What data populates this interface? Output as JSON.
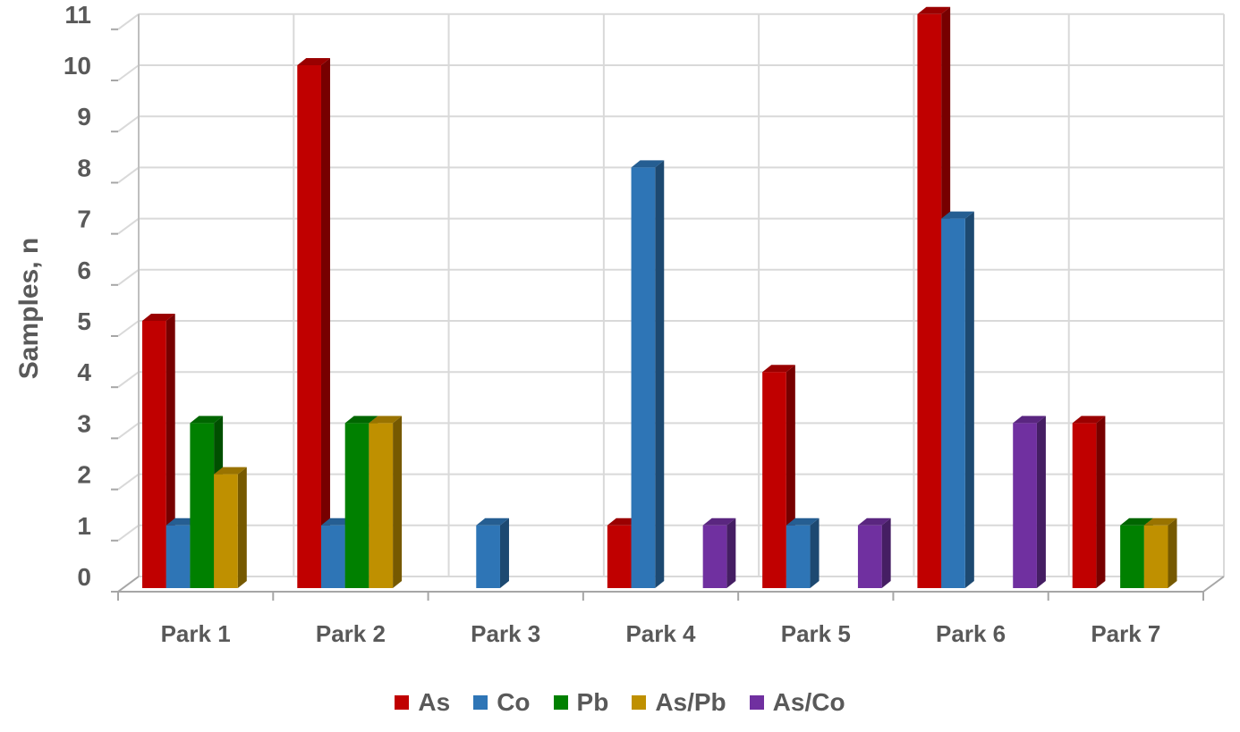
{
  "chart_data": {
    "type": "bar",
    "style": "3d-clustered-column",
    "ylabel": "Samples, n",
    "ylim": [
      0,
      11
    ],
    "yticks": [
      0,
      1,
      2,
      3,
      4,
      5,
      6,
      7,
      8,
      9,
      10,
      11
    ],
    "grid": true,
    "legend_position": "bottom",
    "categories": [
      "Park 1",
      "Park 2",
      "Park 3",
      "Park 4",
      "Park 5",
      "Park 6",
      "Park 7"
    ],
    "series": [
      {
        "name": "As",
        "color": "#C00000",
        "values": [
          5,
          10,
          0,
          1,
          4,
          11,
          3
        ]
      },
      {
        "name": "Co",
        "color": "#2E75B6",
        "values": [
          1,
          1,
          1,
          8,
          1,
          7,
          0
        ]
      },
      {
        "name": "Pb",
        "color": "#008000",
        "values": [
          3,
          3,
          0,
          0,
          0,
          0,
          1
        ]
      },
      {
        "name": "As/Pb",
        "color": "#BF9000",
        "values": [
          2,
          3,
          0,
          0,
          0,
          0,
          1
        ]
      },
      {
        "name": "As/Co",
        "color": "#7030A0",
        "values": [
          0,
          0,
          0,
          1,
          1,
          3,
          0
        ]
      }
    ]
  }
}
